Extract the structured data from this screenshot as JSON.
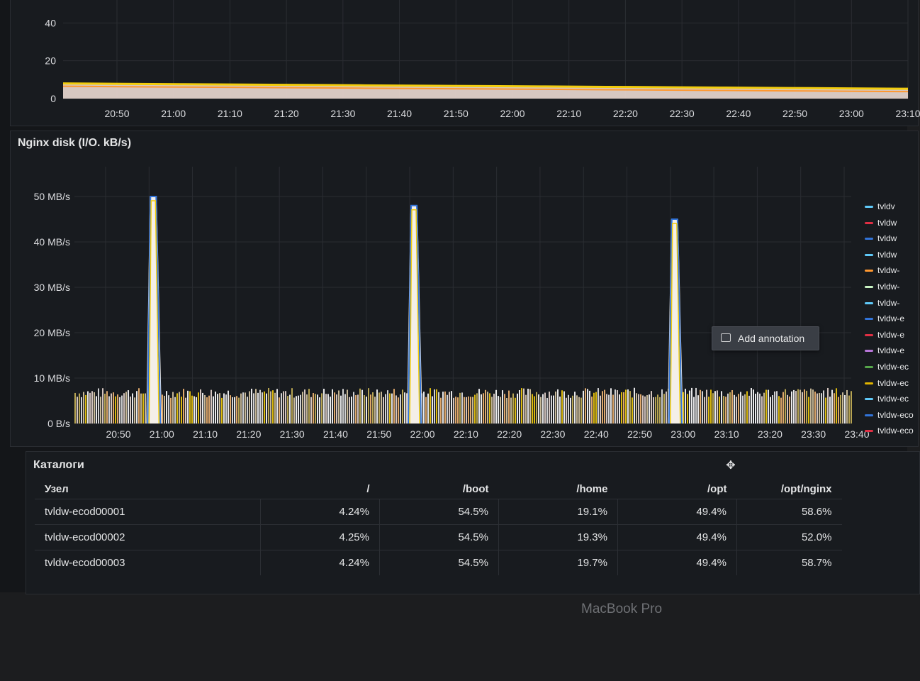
{
  "top_panel": {
    "y_ticks": [
      "40",
      "20",
      "0"
    ],
    "x_ticks": [
      "20:50",
      "21:00",
      "21:10",
      "21:20",
      "21:30",
      "21:40",
      "21:50",
      "22:00",
      "22:10",
      "22:20",
      "22:30",
      "22:40",
      "22:50",
      "23:00",
      "23:10"
    ]
  },
  "disk_panel": {
    "title": "Nginx disk (I/O. kB/s)",
    "y_ticks": [
      "50 MB/s",
      "40 MB/s",
      "30 MB/s",
      "20 MB/s",
      "10 MB/s",
      "0 B/s"
    ],
    "x_ticks": [
      "20:50",
      "21:00",
      "21:10",
      "21:20",
      "21:30",
      "21:40",
      "21:50",
      "22:00",
      "22:10",
      "22:20",
      "22:30",
      "22:40",
      "22:50",
      "23:00",
      "23:10",
      "23:20",
      "23:30",
      "23:40"
    ],
    "annotation_label": "Add annotation",
    "legend": [
      {
        "label": "tvldv",
        "color": "#5fc9f8"
      },
      {
        "label": "tvldw",
        "color": "#e02f44"
      },
      {
        "label": "tvldw",
        "color": "#3274d9"
      },
      {
        "label": "tvldw",
        "color": "#5fc9f8"
      },
      {
        "label": "tvldw-",
        "color": "#ff9830"
      },
      {
        "label": "tvldw-",
        "color": "#c8f2c2"
      },
      {
        "label": "tvldw-",
        "color": "#5fc9f8"
      },
      {
        "label": "tvldw-e",
        "color": "#3274d9"
      },
      {
        "label": "tvldw-e",
        "color": "#e02f44"
      },
      {
        "label": "tvldw-e",
        "color": "#b877d9"
      },
      {
        "label": "tvldw-ec",
        "color": "#56a64b"
      },
      {
        "label": "tvldw-ec",
        "color": "#e0b400"
      },
      {
        "label": "tvldw-ec",
        "color": "#5fc9f8"
      },
      {
        "label": "tvldw-eco",
        "color": "#3274d9"
      },
      {
        "label": "tvldw-eco",
        "color": "#e02f44"
      }
    ]
  },
  "chart_data": [
    {
      "type": "area",
      "x": [
        "20:50",
        "21:00",
        "21:10",
        "21:20",
        "21:30",
        "21:40",
        "21:50",
        "22:00",
        "22:10",
        "22:20",
        "22:30",
        "22:40",
        "22:50",
        "23:00",
        "23:10"
      ],
      "series": [
        {
          "values": [
            8,
            7.8,
            7.6,
            7.4,
            7.2,
            7,
            6.8,
            6.6,
            6.4,
            6.2,
            6,
            5.8,
            5.6,
            5.4,
            5.2
          ]
        }
      ],
      "ylim": [
        0,
        45
      ]
    },
    {
      "type": "area",
      "title": "Nginx disk (I/O. kB/s)",
      "x": [
        "20:50",
        "21:00",
        "21:10",
        "21:20",
        "21:30",
        "21:40",
        "21:50",
        "22:00",
        "22:10",
        "22:20",
        "22:30",
        "22:40",
        "22:50",
        "23:00",
        "23:10",
        "23:20",
        "23:30",
        "23:40"
      ],
      "ylim": [
        0,
        55
      ],
      "peaks": [
        {
          "time": "21:00",
          "value_mb_s": 50
        },
        {
          "time": "22:00",
          "value_mb_s": 48
        },
        {
          "time": "23:00",
          "value_mb_s": 45
        }
      ],
      "baseline_mb_s": 7.5
    }
  ],
  "table": {
    "title": "Каталоги",
    "columns": [
      "Узел",
      "/",
      "/boot",
      "/home",
      "/opt",
      "/opt/nginx"
    ],
    "rows": [
      [
        "tvldw-ecod00001",
        "4.24%",
        "54.5%",
        "19.1%",
        "49.4%",
        "58.6%"
      ],
      [
        "tvldw-ecod00002",
        "4.25%",
        "54.5%",
        "19.3%",
        "49.4%",
        "52.0%"
      ],
      [
        "tvldw-ecod00003",
        "4.24%",
        "54.5%",
        "19.7%",
        "49.4%",
        "58.7%"
      ]
    ]
  },
  "bezel": {
    "label": "MacBook Pro"
  }
}
